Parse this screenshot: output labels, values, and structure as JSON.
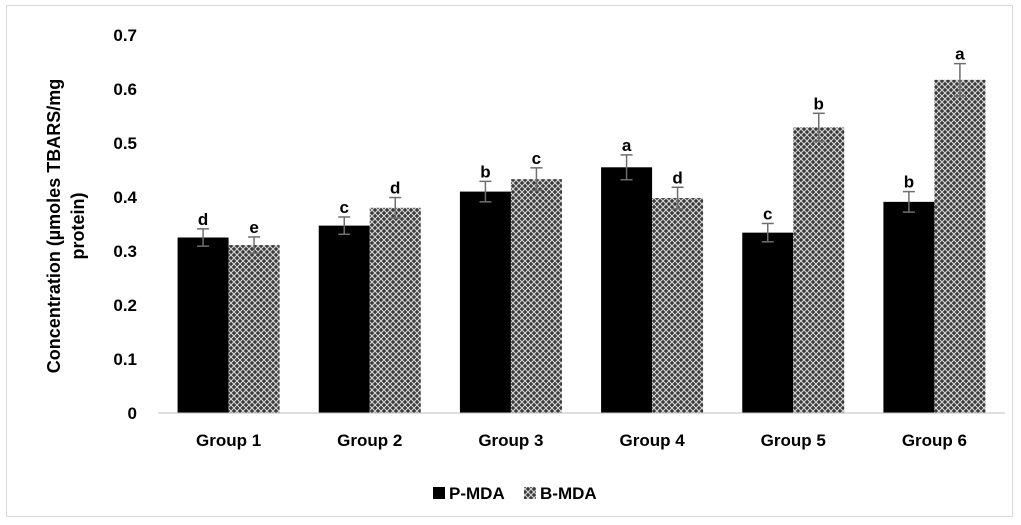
{
  "chart_data": {
    "type": "bar",
    "categories": [
      "Group 1",
      "Group 2",
      "Group 3",
      "Group 4",
      "Group 5",
      "Group 6"
    ],
    "series": [
      {
        "name": "P-MDA",
        "values": [
          0.325,
          0.347,
          0.41,
          0.455,
          0.334,
          0.391
        ],
        "errors": [
          0.016,
          0.016,
          0.019,
          0.023,
          0.017,
          0.019
        ],
        "labels": [
          "d",
          "c",
          "b",
          "a",
          "c",
          "b"
        ],
        "color": "#000000",
        "pattern": "solid"
      },
      {
        "name": "B-MDA",
        "values": [
          0.311,
          0.38,
          0.433,
          0.398,
          0.529,
          0.617
        ],
        "errors": [
          0.015,
          0.019,
          0.021,
          0.02,
          0.026,
          0.03
        ],
        "labels": [
          "e",
          "d",
          "c",
          "d",
          "b",
          "a"
        ],
        "color": "#404040",
        "pattern": "crosshatch"
      }
    ],
    "title": "",
    "xlabel": "",
    "ylabel": "Concentration (µmoles TBARS/mg protein)",
    "ylabel_lines": [
      "Concentration (µmoles TBARS/mg",
      "protein)"
    ],
    "ylim": [
      0,
      0.7
    ],
    "yticks": [
      "0",
      "0.1",
      "0.2",
      "0.3",
      "0.4",
      "0.5",
      "0.6",
      "0.7"
    ],
    "grid": false,
    "legend_position": "bottom"
  }
}
